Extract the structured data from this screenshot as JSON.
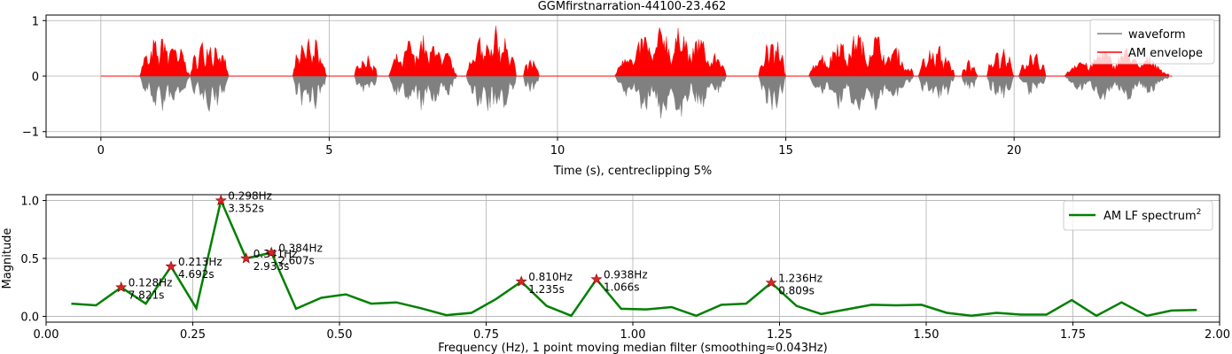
{
  "chart_data": [
    {
      "type": "area",
      "title": "GGMfirstnarration-44100-23.462",
      "xlabel": "Time (s), centreclipping 5%",
      "ylabel": "",
      "xlim": [
        -1.2,
        24.5
      ],
      "ylim": [
        -1.1,
        1.1
      ],
      "xticks": [
        0,
        5,
        10,
        15,
        20
      ],
      "xtick_labels": [
        "0",
        "5",
        "10",
        "15",
        "20"
      ],
      "yticks": [
        1,
        0,
        -1
      ],
      "ytick_labels": [
        "1",
        "0",
        "−1"
      ],
      "grid": true,
      "legend_position": "top-right",
      "series": [
        {
          "name": "waveform",
          "color": "#808080"
        },
        {
          "name": "AM envelope",
          "color": "#ff0000"
        }
      ],
      "duration": 23.462,
      "speech_segments": [
        {
          "start": 0.85,
          "end": 1.95,
          "peak": 0.82
        },
        {
          "start": 1.95,
          "end": 2.8,
          "peak": 0.77
        },
        {
          "start": 4.2,
          "end": 4.95,
          "peak": 0.8
        },
        {
          "start": 5.55,
          "end": 6.05,
          "peak": 0.45
        },
        {
          "start": 6.3,
          "end": 7.8,
          "peak": 0.78
        },
        {
          "start": 8.0,
          "end": 9.1,
          "peak": 0.95
        },
        {
          "start": 9.25,
          "end": 9.6,
          "peak": 0.4
        },
        {
          "start": 11.25,
          "end": 13.7,
          "peak": 0.97
        },
        {
          "start": 14.4,
          "end": 15.0,
          "peak": 0.78
        },
        {
          "start": 15.5,
          "end": 17.8,
          "peak": 0.85
        },
        {
          "start": 17.9,
          "end": 18.7,
          "peak": 0.6
        },
        {
          "start": 18.85,
          "end": 19.2,
          "peak": 0.35
        },
        {
          "start": 19.4,
          "end": 20.0,
          "peak": 0.55
        },
        {
          "start": 20.1,
          "end": 20.7,
          "peak": 0.45
        },
        {
          "start": 21.1,
          "end": 23.4,
          "peak": 0.55
        }
      ]
    },
    {
      "type": "line",
      "title": "",
      "xlabel": "Frequency (Hz), 1 point moving median filter (smoothing≈0.043Hz)",
      "ylabel": "Magnitude",
      "xlim": [
        0,
        2.0
      ],
      "ylim": [
        -0.05,
        1.05
      ],
      "xticks": [
        0,
        0.25,
        0.5,
        0.75,
        1.0,
        1.25,
        1.5,
        1.75,
        2.0
      ],
      "xtick_labels": [
        "0.00",
        "0.25",
        "0.50",
        "0.75",
        "1.00",
        "1.25",
        "1.50",
        "1.75",
        "2.00"
      ],
      "yticks": [
        0.0,
        0.5,
        1.0
      ],
      "ytick_labels": [
        "0.0",
        "0.5",
        "1.0"
      ],
      "grid": true,
      "legend_position": "top-right",
      "series": [
        {
          "name": "AM LF spectrum",
          "name_sup": "2",
          "color": "#008000",
          "x": [
            0.043,
            0.085,
            0.128,
            0.17,
            0.213,
            0.256,
            0.298,
            0.341,
            0.384,
            0.426,
            0.469,
            0.511,
            0.554,
            0.597,
            0.639,
            0.682,
            0.725,
            0.767,
            0.81,
            0.853,
            0.895,
            0.938,
            0.98,
            1.023,
            1.066,
            1.108,
            1.151,
            1.193,
            1.236,
            1.279,
            1.321,
            1.364,
            1.407,
            1.449,
            1.492,
            1.535,
            1.577,
            1.62,
            1.662,
            1.705,
            1.748,
            1.79,
            1.833,
            1.876,
            1.918,
            1.961
          ],
          "y": [
            0.11,
            0.095,
            0.25,
            0.11,
            0.43,
            0.07,
            1.0,
            0.5,
            0.55,
            0.065,
            0.16,
            0.19,
            0.11,
            0.12,
            0.07,
            0.01,
            0.03,
            0.15,
            0.3,
            0.09,
            0.005,
            0.32,
            0.065,
            0.06,
            0.08,
            0.005,
            0.1,
            0.11,
            0.29,
            0.09,
            0.02,
            0.06,
            0.1,
            0.095,
            0.1,
            0.03,
            0.005,
            0.03,
            0.015,
            0.015,
            0.14,
            0.005,
            0.12,
            0.005,
            0.05,
            0.055
          ]
        }
      ],
      "peaks": [
        {
          "x": 0.128,
          "y": 0.25,
          "freq_label": "0.128Hz",
          "period_label": "7.821s"
        },
        {
          "x": 0.213,
          "y": 0.43,
          "freq_label": "0.213Hz",
          "period_label": "4.692s"
        },
        {
          "x": 0.298,
          "y": 1.0,
          "freq_label": "0.298Hz",
          "period_label": "3.352s"
        },
        {
          "x": 0.341,
          "y": 0.5,
          "freq_label": "0.341Hz",
          "period_label": "2.933s"
        },
        {
          "x": 0.384,
          "y": 0.55,
          "freq_label": "0.384Hz",
          "period_label": "2.607s"
        },
        {
          "x": 0.81,
          "y": 0.3,
          "freq_label": "0.810Hz",
          "period_label": "1.235s"
        },
        {
          "x": 0.938,
          "y": 0.32,
          "freq_label": "0.938Hz",
          "period_label": "1.066s"
        },
        {
          "x": 1.236,
          "y": 0.29,
          "freq_label": "1.236Hz",
          "period_label": "0.809s"
        }
      ],
      "marker_color": "#d62728"
    }
  ]
}
